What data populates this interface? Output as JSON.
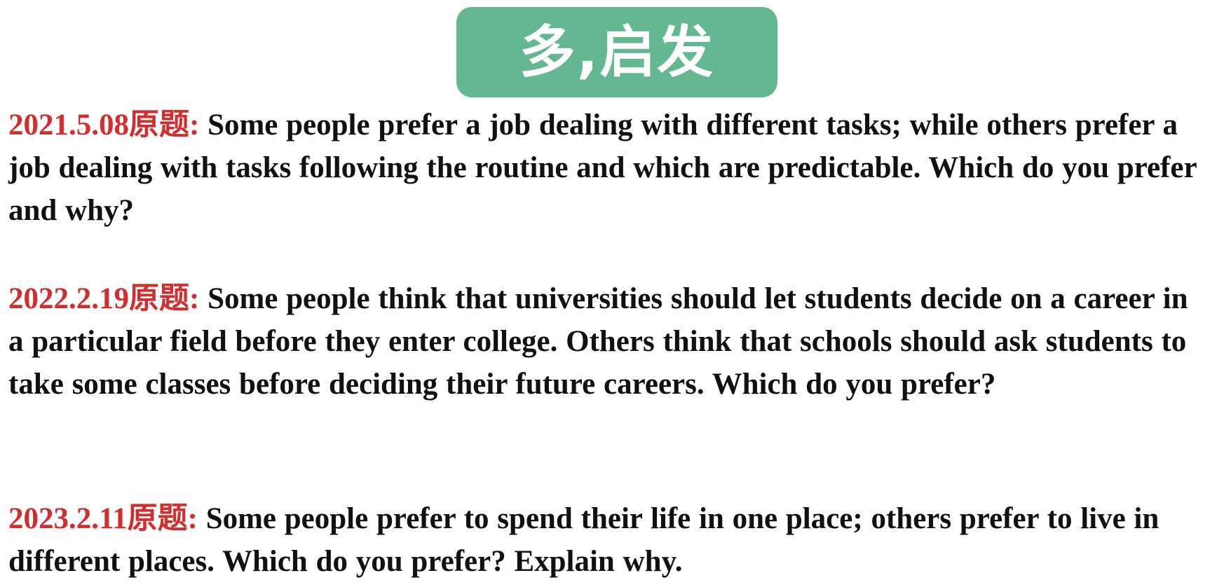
{
  "header": {
    "title": "多,启发",
    "badge_color": "#63b892"
  },
  "colors": {
    "label": "#d22e2e",
    "text": "#111111"
  },
  "questions": [
    {
      "label": "2021.5.08原题:",
      "text": "Some people prefer a job dealing with different tasks; while others prefer a job dealing with tasks following the routine and which are predictable. Which do you prefer and why?"
    },
    {
      "label": "2022.2.19原题:",
      "text": "Some people think that universities should let students decide on a career in a particular field before they enter college. Others think that schools should ask students to take some classes before deciding their future careers. Which do you prefer?"
    },
    {
      "label": "2023.2.11原题:",
      "text": "Some people prefer to spend their life in one place; others prefer to live in different places. Which do you prefer? Explain why."
    }
  ]
}
